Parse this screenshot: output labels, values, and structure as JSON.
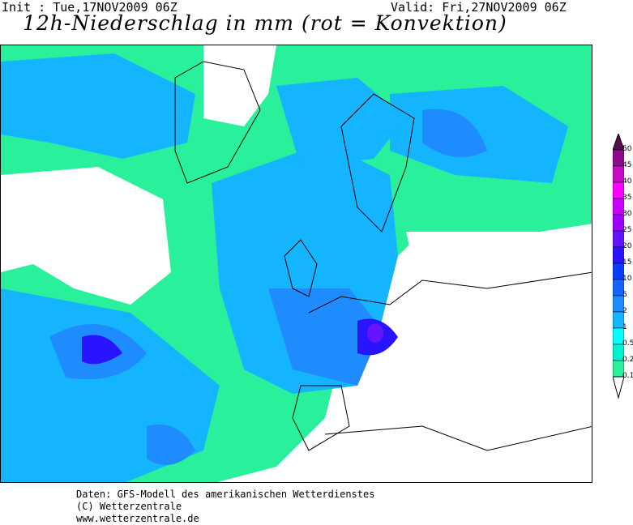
{
  "header": {
    "init": "Init : Tue,17NOV2009 06Z",
    "valid": "Valid: Fri,27NOV2009 06Z",
    "title": "12h-Niederschlag in mm (rot = Konvektion)"
  },
  "legend": {
    "labels": [
      "50",
      "45",
      "40",
      "35",
      "30",
      "25",
      "20",
      "15",
      "10",
      "5",
      "2",
      "1",
      "0.5",
      "0.2",
      "0.1"
    ],
    "colors": [
      "#8c0a8c",
      "#c80ac8",
      "#ff00ff",
      "#c800ff",
      "#a000ff",
      "#6414ff",
      "#2814ff",
      "#0a3cff",
      "#1464ff",
      "#1e8cff",
      "#14b4ff",
      "#00ffff",
      "#00f0d2",
      "#28f09b"
    ],
    "top_color": "#5a0a5a"
  },
  "footer": {
    "line1": "Daten: GFS-Modell des amerikanischen Wetterdienstes",
    "line2": "(C) Wetterzentrale",
    "line3": "www.wetterzentrale.de"
  }
}
